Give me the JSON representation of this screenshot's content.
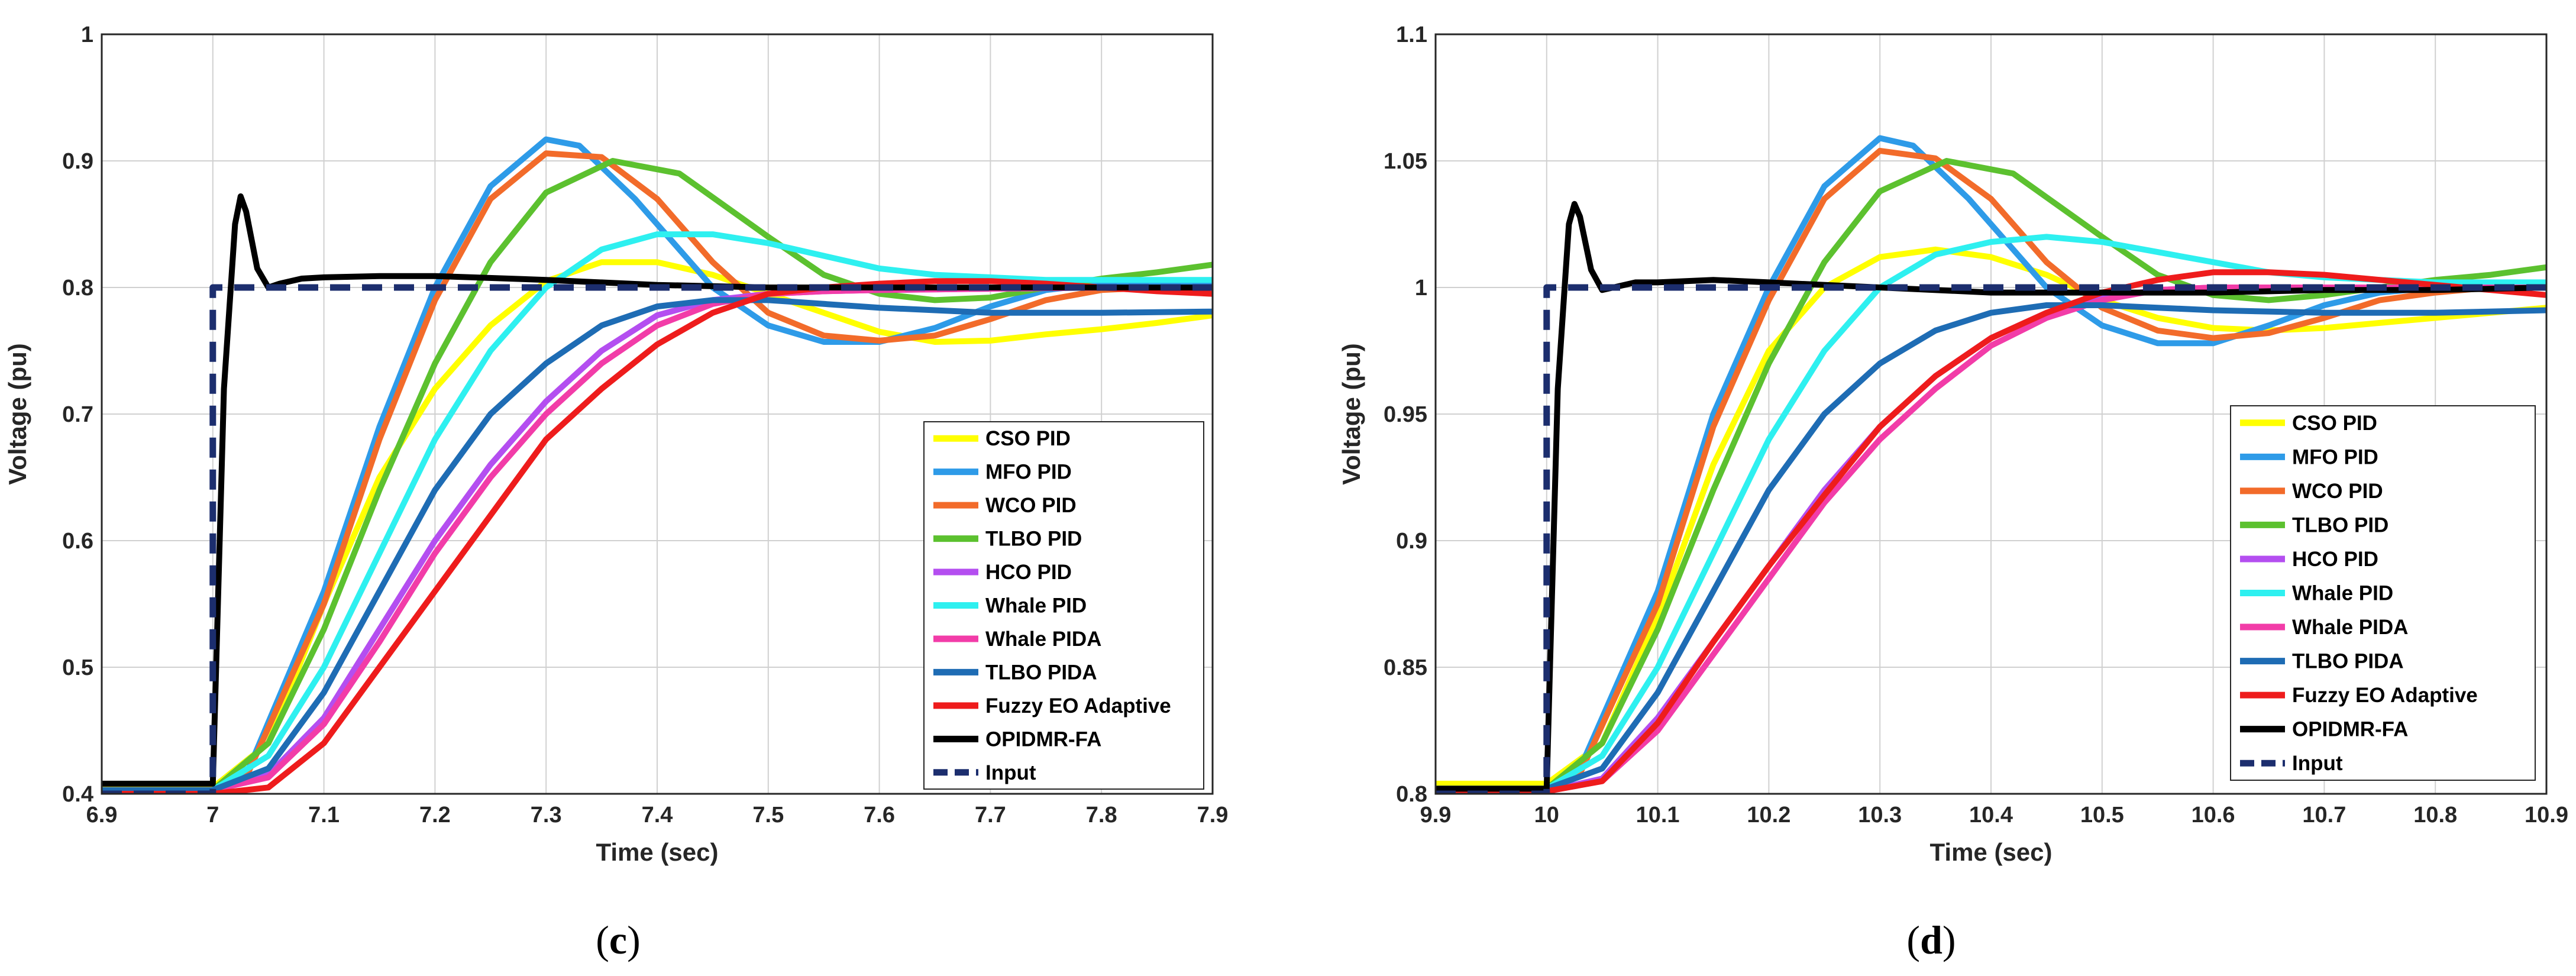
{
  "chart_data": [
    {
      "type": "line",
      "panel": "c",
      "caption": {
        "open": "(",
        "letter": "c",
        "close": ")"
      },
      "xlabel": "Time (sec)",
      "ylabel": "Voltage (pu)",
      "xlim": [
        6.9,
        7.9
      ],
      "ylim": [
        0.4,
        1.0
      ],
      "xticks": [
        "6.9",
        "7",
        "7.1",
        "7.2",
        "7.3",
        "7.4",
        "7.5",
        "7.6",
        "7.7",
        "7.8",
        "7.9"
      ],
      "yticks": [
        "0.4",
        "0.5",
        "0.6",
        "0.7",
        "0.8",
        "0.9",
        "1"
      ],
      "grid": true,
      "legend_position": "bottom-right",
      "series": [
        {
          "name": "CSO PID",
          "color": "#ffff00",
          "x": [
            6.9,
            7.0,
            7.05,
            7.1,
            7.15,
            7.2,
            7.25,
            7.3,
            7.35,
            7.4,
            7.45,
            7.5,
            7.55,
            7.6,
            7.65,
            7.7,
            7.75,
            7.8,
            7.85,
            7.9
          ],
          "y": [
            0.405,
            0.405,
            0.44,
            0.55,
            0.65,
            0.72,
            0.77,
            0.805,
            0.82,
            0.82,
            0.81,
            0.795,
            0.78,
            0.765,
            0.757,
            0.758,
            0.763,
            0.767,
            0.772,
            0.778
          ]
        },
        {
          "name": "MFO PID",
          "color": "#2e9be8",
          "x": [
            6.9,
            7.0,
            7.03,
            7.1,
            7.15,
            7.2,
            7.25,
            7.3,
            7.33,
            7.38,
            7.45,
            7.5,
            7.55,
            7.6,
            7.65,
            7.7,
            7.75,
            7.8,
            7.85,
            7.9
          ],
          "y": [
            0.403,
            0.403,
            0.415,
            0.56,
            0.69,
            0.8,
            0.88,
            0.917,
            0.912,
            0.87,
            0.8,
            0.77,
            0.757,
            0.757,
            0.768,
            0.785,
            0.798,
            0.803,
            0.803,
            0.802
          ]
        },
        {
          "name": "WCO PID",
          "color": "#f26b2a",
          "x": [
            6.9,
            7.0,
            7.03,
            7.1,
            7.15,
            7.2,
            7.25,
            7.3,
            7.35,
            7.4,
            7.45,
            7.5,
            7.55,
            7.6,
            7.65,
            7.7,
            7.75,
            7.8,
            7.85,
            7.9
          ],
          "y": [
            0.403,
            0.403,
            0.413,
            0.55,
            0.68,
            0.79,
            0.87,
            0.906,
            0.903,
            0.87,
            0.82,
            0.78,
            0.762,
            0.758,
            0.762,
            0.775,
            0.79,
            0.798,
            0.8,
            0.8
          ]
        },
        {
          "name": "TLBO PID",
          "color": "#5cc12f",
          "x": [
            6.9,
            7.0,
            7.05,
            7.1,
            7.15,
            7.2,
            7.25,
            7.3,
            7.36,
            7.42,
            7.5,
            7.55,
            7.6,
            7.65,
            7.7,
            7.75,
            7.8,
            7.85,
            7.9
          ],
          "y": [
            0.403,
            0.403,
            0.44,
            0.53,
            0.64,
            0.74,
            0.82,
            0.875,
            0.9,
            0.89,
            0.84,
            0.81,
            0.795,
            0.79,
            0.792,
            0.8,
            0.807,
            0.812,
            0.818
          ]
        },
        {
          "name": "HCO PID",
          "color": "#b44ef0",
          "x": [
            6.9,
            7.0,
            7.05,
            7.1,
            7.15,
            7.2,
            7.25,
            7.3,
            7.35,
            7.4,
            7.45,
            7.5,
            7.55,
            7.6,
            7.7,
            7.8,
            7.9
          ],
          "y": [
            0.403,
            0.403,
            0.415,
            0.46,
            0.53,
            0.6,
            0.66,
            0.71,
            0.75,
            0.778,
            0.79,
            0.795,
            0.797,
            0.798,
            0.799,
            0.8,
            0.8
          ]
        },
        {
          "name": "Whale PID",
          "color": "#2ef0f0",
          "x": [
            6.9,
            7.0,
            7.05,
            7.1,
            7.15,
            7.2,
            7.25,
            7.3,
            7.35,
            7.4,
            7.45,
            7.5,
            7.55,
            7.6,
            7.65,
            7.7,
            7.75,
            7.8,
            7.85,
            7.9
          ],
          "y": [
            0.403,
            0.403,
            0.43,
            0.5,
            0.59,
            0.68,
            0.75,
            0.8,
            0.83,
            0.842,
            0.842,
            0.835,
            0.825,
            0.815,
            0.81,
            0.808,
            0.806,
            0.806,
            0.806,
            0.806
          ]
        },
        {
          "name": "Whale PIDA",
          "color": "#f23ca8",
          "x": [
            6.9,
            7.0,
            7.05,
            7.1,
            7.15,
            7.2,
            7.25,
            7.3,
            7.35,
            7.4,
            7.45,
            7.5,
            7.55,
            7.6,
            7.7,
            7.8,
            7.9
          ],
          "y": [
            0.403,
            0.403,
            0.413,
            0.455,
            0.52,
            0.59,
            0.65,
            0.7,
            0.74,
            0.77,
            0.787,
            0.795,
            0.797,
            0.798,
            0.799,
            0.8,
            0.8
          ]
        },
        {
          "name": "TLBO PIDA",
          "color": "#1e6cb4",
          "x": [
            6.9,
            7.0,
            7.05,
            7.1,
            7.15,
            7.2,
            7.25,
            7.3,
            7.35,
            7.4,
            7.45,
            7.5,
            7.55,
            7.6,
            7.7,
            7.8,
            7.9
          ],
          "y": [
            0.403,
            0.403,
            0.42,
            0.48,
            0.56,
            0.64,
            0.7,
            0.74,
            0.77,
            0.785,
            0.79,
            0.79,
            0.787,
            0.784,
            0.78,
            0.78,
            0.781
          ]
        },
        {
          "name": "Fuzzy EO Adaptive",
          "color": "#ee1c1c",
          "x": [
            6.9,
            7.0,
            7.05,
            7.1,
            7.15,
            7.2,
            7.25,
            7.3,
            7.35,
            7.4,
            7.45,
            7.5,
            7.55,
            7.6,
            7.65,
            7.7,
            7.75,
            7.8,
            7.85,
            7.9
          ],
          "y": [
            0.4,
            0.4,
            0.405,
            0.44,
            0.5,
            0.56,
            0.62,
            0.68,
            0.72,
            0.755,
            0.78,
            0.795,
            0.8,
            0.803,
            0.805,
            0.805,
            0.803,
            0.8,
            0.797,
            0.795
          ]
        },
        {
          "name": "OPIDMR-FA",
          "color": "#000000",
          "x": [
            6.9,
            7.0,
            7.003,
            7.01,
            7.02,
            7.025,
            7.03,
            7.04,
            7.05,
            7.06,
            7.08,
            7.1,
            7.15,
            7.2,
            7.3,
            7.4,
            7.5,
            7.6,
            7.7,
            7.8,
            7.9
          ],
          "y": [
            0.408,
            0.408,
            0.5,
            0.72,
            0.85,
            0.872,
            0.86,
            0.815,
            0.8,
            0.803,
            0.807,
            0.808,
            0.809,
            0.809,
            0.806,
            0.802,
            0.8,
            0.8,
            0.8,
            0.8,
            0.8
          ]
        },
        {
          "name": "Input",
          "color": "#1c2e6e",
          "dashed": true,
          "x": [
            6.9,
            7.0,
            7.0,
            7.9
          ],
          "y": [
            0.4,
            0.4,
            0.8,
            0.8
          ]
        }
      ]
    },
    {
      "type": "line",
      "panel": "d",
      "caption": {
        "open": "(",
        "letter": "d",
        "close": ")"
      },
      "xlabel": "Time (sec)",
      "ylabel": "Voltage (pu)",
      "xlim": [
        9.9,
        10.9
      ],
      "ylim": [
        0.8,
        1.1
      ],
      "xticks": [
        "9.9",
        "10",
        "10.1",
        "10.2",
        "10.3",
        "10.4",
        "10.5",
        "10.6",
        "10.7",
        "10.8",
        "10.9"
      ],
      "yticks": [
        "0.8",
        "0.85",
        "0.9",
        "0.95",
        "1",
        "1.05",
        "1.1"
      ],
      "grid": true,
      "legend_position": "bottom-right",
      "series": [
        {
          "name": "CSO PID",
          "color": "#ffff00",
          "x": [
            9.9,
            10.0,
            10.05,
            10.1,
            10.15,
            10.2,
            10.25,
            10.3,
            10.35,
            10.4,
            10.45,
            10.5,
            10.55,
            10.6,
            10.65,
            10.7,
            10.75,
            10.8,
            10.85,
            10.9
          ],
          "y": [
            0.804,
            0.804,
            0.82,
            0.87,
            0.93,
            0.975,
            1.0,
            1.012,
            1.015,
            1.012,
            1.005,
            0.995,
            0.988,
            0.984,
            0.983,
            0.984,
            0.986,
            0.988,
            0.99,
            0.992
          ]
        },
        {
          "name": "MFO PID",
          "color": "#2e9be8",
          "x": [
            9.9,
            10.0,
            10.03,
            10.1,
            10.15,
            10.2,
            10.25,
            10.3,
            10.33,
            10.38,
            10.45,
            10.5,
            10.55,
            10.6,
            10.65,
            10.7,
            10.75,
            10.8,
            10.85,
            10.9
          ],
          "y": [
            0.802,
            0.802,
            0.81,
            0.88,
            0.95,
            1.0,
            1.04,
            1.059,
            1.056,
            1.035,
            1.0,
            0.985,
            0.978,
            0.978,
            0.985,
            0.993,
            0.998,
            1.0,
            1.0,
            1.0
          ]
        },
        {
          "name": "WCO PID",
          "color": "#f26b2a",
          "x": [
            9.9,
            10.0,
            10.03,
            10.1,
            10.15,
            10.2,
            10.25,
            10.3,
            10.35,
            10.4,
            10.45,
            10.5,
            10.55,
            10.6,
            10.65,
            10.7,
            10.75,
            10.8,
            10.85,
            10.9
          ],
          "y": [
            0.802,
            0.802,
            0.808,
            0.875,
            0.945,
            0.995,
            1.035,
            1.054,
            1.051,
            1.035,
            1.01,
            0.992,
            0.983,
            0.98,
            0.982,
            0.988,
            0.995,
            0.998,
            1.0,
            1.0
          ]
        },
        {
          "name": "TLBO PID",
          "color": "#5cc12f",
          "x": [
            9.9,
            10.0,
            10.05,
            10.1,
            10.15,
            10.2,
            10.25,
            10.3,
            10.36,
            10.42,
            10.5,
            10.55,
            10.6,
            10.65,
            10.7,
            10.75,
            10.8,
            10.85,
            10.9
          ],
          "y": [
            0.802,
            0.802,
            0.82,
            0.865,
            0.92,
            0.97,
            1.01,
            1.038,
            1.05,
            1.045,
            1.02,
            1.005,
            0.997,
            0.995,
            0.997,
            1.0,
            1.003,
            1.005,
            1.008
          ]
        },
        {
          "name": "HCO PID",
          "color": "#b44ef0",
          "x": [
            9.9,
            10.0,
            10.05,
            10.1,
            10.15,
            10.2,
            10.25,
            10.3,
            10.35,
            10.4,
            10.45,
            10.5,
            10.55,
            10.6,
            10.7,
            10.8,
            10.9
          ],
          "y": [
            0.801,
            0.801,
            0.806,
            0.83,
            0.86,
            0.89,
            0.92,
            0.945,
            0.965,
            0.98,
            0.99,
            0.996,
            0.999,
            1.0,
            1.0,
            1.0,
            1.0
          ]
        },
        {
          "name": "Whale PID",
          "color": "#2ef0f0",
          "x": [
            9.9,
            10.0,
            10.05,
            10.1,
            10.15,
            10.2,
            10.25,
            10.3,
            10.35,
            10.4,
            10.45,
            10.5,
            10.55,
            10.6,
            10.65,
            10.7,
            10.75,
            10.8,
            10.85,
            10.9
          ],
          "y": [
            0.802,
            0.802,
            0.815,
            0.85,
            0.895,
            0.94,
            0.975,
            1.0,
            1.013,
            1.018,
            1.02,
            1.018,
            1.014,
            1.01,
            1.006,
            1.004,
            1.003,
            1.002,
            1.002,
            1.002
          ]
        },
        {
          "name": "Whale PIDA",
          "color": "#f23ca8",
          "x": [
            9.9,
            10.0,
            10.05,
            10.1,
            10.15,
            10.2,
            10.25,
            10.3,
            10.35,
            10.4,
            10.45,
            10.5,
            10.55,
            10.6,
            10.7,
            10.8,
            10.9
          ],
          "y": [
            0.801,
            0.801,
            0.805,
            0.825,
            0.855,
            0.885,
            0.915,
            0.94,
            0.96,
            0.977,
            0.988,
            0.995,
            0.999,
            1.0,
            1.0,
            1.0,
            1.0
          ]
        },
        {
          "name": "TLBO PIDA",
          "color": "#1e6cb4",
          "x": [
            9.9,
            10.0,
            10.05,
            10.1,
            10.15,
            10.2,
            10.25,
            10.3,
            10.35,
            10.4,
            10.45,
            10.5,
            10.55,
            10.6,
            10.7,
            10.8,
            10.9
          ],
          "y": [
            0.802,
            0.802,
            0.81,
            0.84,
            0.88,
            0.92,
            0.95,
            0.97,
            0.983,
            0.99,
            0.993,
            0.993,
            0.992,
            0.991,
            0.99,
            0.99,
            0.991
          ]
        },
        {
          "name": "Fuzzy EO Adaptive",
          "color": "#ee1c1c",
          "x": [
            9.9,
            10.0,
            10.05,
            10.1,
            10.15,
            10.2,
            10.25,
            10.3,
            10.35,
            10.4,
            10.45,
            10.5,
            10.55,
            10.6,
            10.65,
            10.7,
            10.75,
            10.8,
            10.85,
            10.9
          ],
          "y": [
            0.801,
            0.801,
            0.805,
            0.828,
            0.86,
            0.89,
            0.918,
            0.945,
            0.965,
            0.98,
            0.99,
            0.998,
            1.003,
            1.006,
            1.006,
            1.005,
            1.003,
            1.001,
            0.999,
            0.997
          ]
        },
        {
          "name": "OPIDMR-FA",
          "color": "#000000",
          "x": [
            9.9,
            10.0,
            10.003,
            10.01,
            10.02,
            10.025,
            10.03,
            10.04,
            10.05,
            10.06,
            10.08,
            10.1,
            10.15,
            10.2,
            10.3,
            10.4,
            10.5,
            10.6,
            10.7,
            10.8,
            10.9
          ],
          "y": [
            0.802,
            0.802,
            0.85,
            0.96,
            1.025,
            1.033,
            1.028,
            1.007,
            0.999,
            1.0,
            1.002,
            1.002,
            1.003,
            1.002,
            1.0,
            0.998,
            0.998,
            0.998,
            0.999,
            0.999,
            1.0
          ]
        },
        {
          "name": "Input",
          "color": "#1c2e6e",
          "dashed": true,
          "x": [
            9.9,
            10.0,
            10.0,
            10.9
          ],
          "y": [
            0.8,
            0.8,
            1.0,
            1.0
          ]
        }
      ]
    }
  ]
}
